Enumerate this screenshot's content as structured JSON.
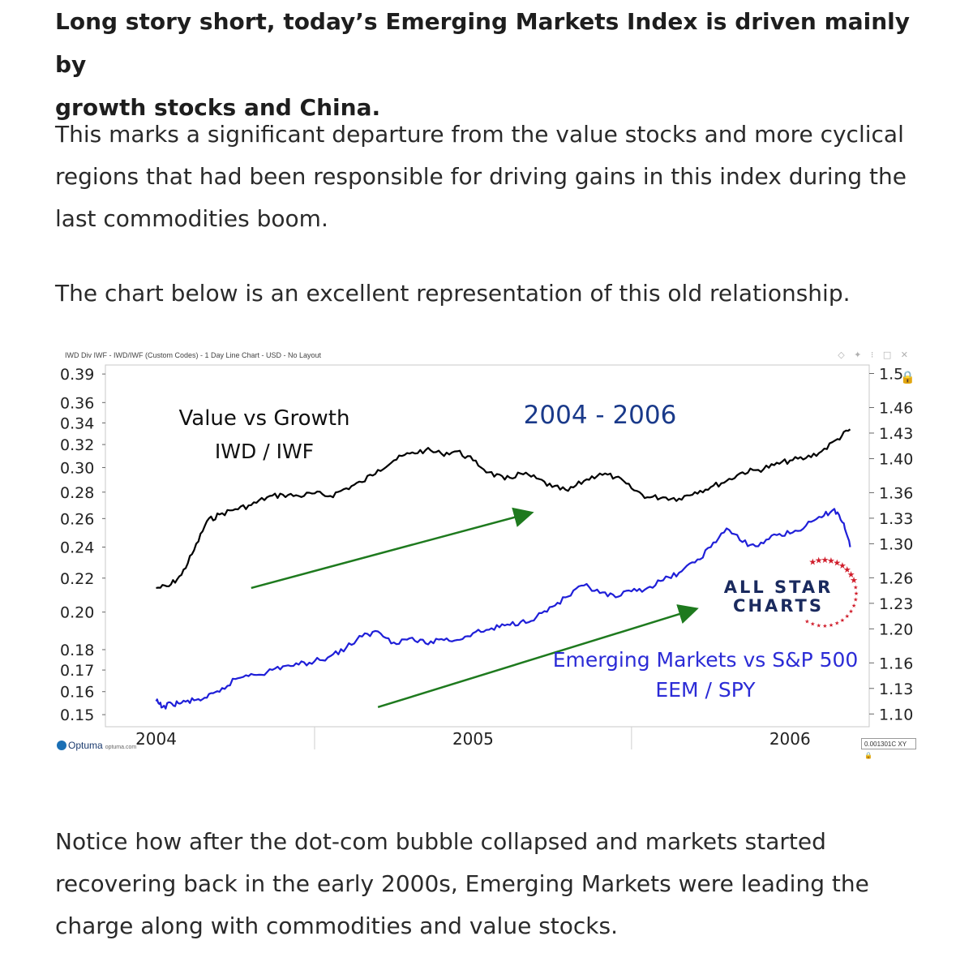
{
  "article": {
    "lead_line1": "Long story short, today’s Emerging Markets Index is driven mainly by",
    "lead_line2": "growth stocks and China.",
    "p1_line1": "This marks a significant departure from the value stocks and more cyclical",
    "p1_line2": "regions that had been responsible for driving gains in this index during the",
    "p1_line3": "last commodities boom.",
    "p2": "The chart below is an excellent representation of this old relationship.",
    "p3_line1": "Notice how after the dot-com bubble collapsed and markets started",
    "p3_line2": "recovering back in the early 2000s, Emerging Markets were leading the",
    "p3_line3": "charge along with commodities and value stocks."
  },
  "chart_header": {
    "title": "IWD Div IWF - IWD/IWF (Custom Codes) - 1 Day Line Chart - USD - No Layout",
    "tools": "◇ ✦ ⁝ □ ✕",
    "xy_value": "0.001301C XY 🔒",
    "optuma_brand": "Optuma",
    "optuma_url": "optuma.com"
  },
  "logo": {
    "line1": "ALL STAR",
    "line2": "CHARTS"
  },
  "chart_data": {
    "type": "line",
    "title": "2004 - 2006",
    "x_ticks": [
      "2004",
      "2005",
      "2006"
    ],
    "y_left_ticks": [
      "0.39",
      "0.36",
      "0.34",
      "0.32",
      "0.30",
      "0.28",
      "0.26",
      "0.24",
      "0.22",
      "0.20",
      "0.18",
      "0.17",
      "0.16",
      "0.15"
    ],
    "y_left_tick_values": [
      0.39,
      0.36,
      0.34,
      0.32,
      0.3,
      0.28,
      0.26,
      0.24,
      0.22,
      0.2,
      0.18,
      0.17,
      0.16,
      0.15
    ],
    "y_left_range": [
      0.145,
      0.4
    ],
    "y_left_scale": "log",
    "y_right_ticks": [
      "1.5",
      "1.46",
      "1.43",
      "1.40",
      "1.36",
      "1.33",
      "1.30",
      "1.26",
      "1.23",
      "1.20",
      "1.16",
      "1.13",
      "1.10"
    ],
    "y_right_tick_values": [
      1.5,
      1.46,
      1.43,
      1.4,
      1.36,
      1.33,
      1.3,
      1.26,
      1.23,
      1.2,
      1.16,
      1.13,
      1.1
    ],
    "y_right_range": [
      1.085,
      1.51
    ],
    "x_range": [
      2003.84,
      2006.25
    ],
    "grid": "vertical only at year boundaries",
    "annotations": [
      {
        "text": "Value vs Growth",
        "color": "#111111"
      },
      {
        "text": "IWD / IWF",
        "color": "#111111"
      },
      {
        "text": "Emerging Markets vs S&P 500",
        "color": "#2b2bd6"
      },
      {
        "text": "EEM / SPY",
        "color": "#2b2bd6"
      }
    ],
    "series": [
      {
        "color": "#000000",
        "axis": "left",
        "x": [
          2004.0,
          2004.04,
          2004.08,
          2004.12,
          2004.16,
          2004.2,
          2004.25,
          2004.3,
          2004.35,
          2004.4,
          2004.45,
          2004.5,
          2004.55,
          2004.6,
          2004.65,
          2004.7,
          2004.75,
          2004.8,
          2004.85,
          2004.9,
          2004.95,
          2005.0,
          2005.05,
          2005.1,
          2005.15,
          2005.2,
          2005.25,
          2005.3,
          2005.35,
          2005.4,
          2005.45,
          2005.5,
          2005.55,
          2005.6,
          2005.65,
          2005.7,
          2005.75,
          2005.8,
          2005.85,
          2005.9,
          2005.95,
          2006.0,
          2006.05,
          2006.1,
          2006.15,
          2006.19
        ],
        "y": [
          0.214,
          0.215,
          0.222,
          0.238,
          0.258,
          0.263,
          0.267,
          0.27,
          0.276,
          0.278,
          0.277,
          0.279,
          0.277,
          0.283,
          0.288,
          0.298,
          0.306,
          0.312,
          0.315,
          0.312,
          0.314,
          0.306,
          0.296,
          0.29,
          0.295,
          0.291,
          0.284,
          0.281,
          0.289,
          0.295,
          0.292,
          0.283,
          0.276,
          0.276,
          0.275,
          0.28,
          0.284,
          0.289,
          0.296,
          0.298,
          0.302,
          0.306,
          0.308,
          0.314,
          0.325,
          0.334
        ]
      },
      {
        "color": "#1f1fd8",
        "axis": "right",
        "x": [
          2004.0,
          2004.02,
          2004.05,
          2004.08,
          2004.12,
          2004.16,
          2004.2,
          2004.25,
          2004.3,
          2004.35,
          2004.4,
          2004.45,
          2004.5,
          2004.55,
          2004.6,
          2004.65,
          2004.7,
          2004.75,
          2004.8,
          2004.85,
          2004.9,
          2004.95,
          2005.0,
          2005.05,
          2005.1,
          2005.15,
          2005.2,
          2005.25,
          2005.3,
          2005.35,
          2005.4,
          2005.45,
          2005.5,
          2005.55,
          2005.6,
          2005.65,
          2005.7,
          2005.75,
          2005.8,
          2005.85,
          2005.9,
          2005.95,
          2006.0,
          2006.05,
          2006.1,
          2006.14,
          2006.17,
          2006.19
        ],
        "y": [
          1.115,
          1.108,
          1.112,
          1.113,
          1.116,
          1.119,
          1.126,
          1.141,
          1.147,
          1.149,
          1.156,
          1.158,
          1.162,
          1.168,
          1.178,
          1.191,
          1.197,
          1.184,
          1.189,
          1.183,
          1.188,
          1.187,
          1.195,
          1.199,
          1.204,
          1.208,
          1.214,
          1.226,
          1.238,
          1.251,
          1.242,
          1.237,
          1.244,
          1.248,
          1.257,
          1.266,
          1.278,
          1.296,
          1.318,
          1.302,
          1.297,
          1.311,
          1.312,
          1.321,
          1.331,
          1.341,
          1.324,
          1.296
        ]
      }
    ],
    "trend_arrows": [
      {
        "color": "#1e7a1e",
        "x": [
          2004.3,
          2005.18
        ],
        "axis": "left",
        "y": [
          0.214,
          0.264
        ]
      },
      {
        "color": "#1e7a1e",
        "x": [
          2004.7,
          2005.7
        ],
        "axis": "right",
        "y": [
          1.108,
          1.223
        ]
      }
    ]
  }
}
